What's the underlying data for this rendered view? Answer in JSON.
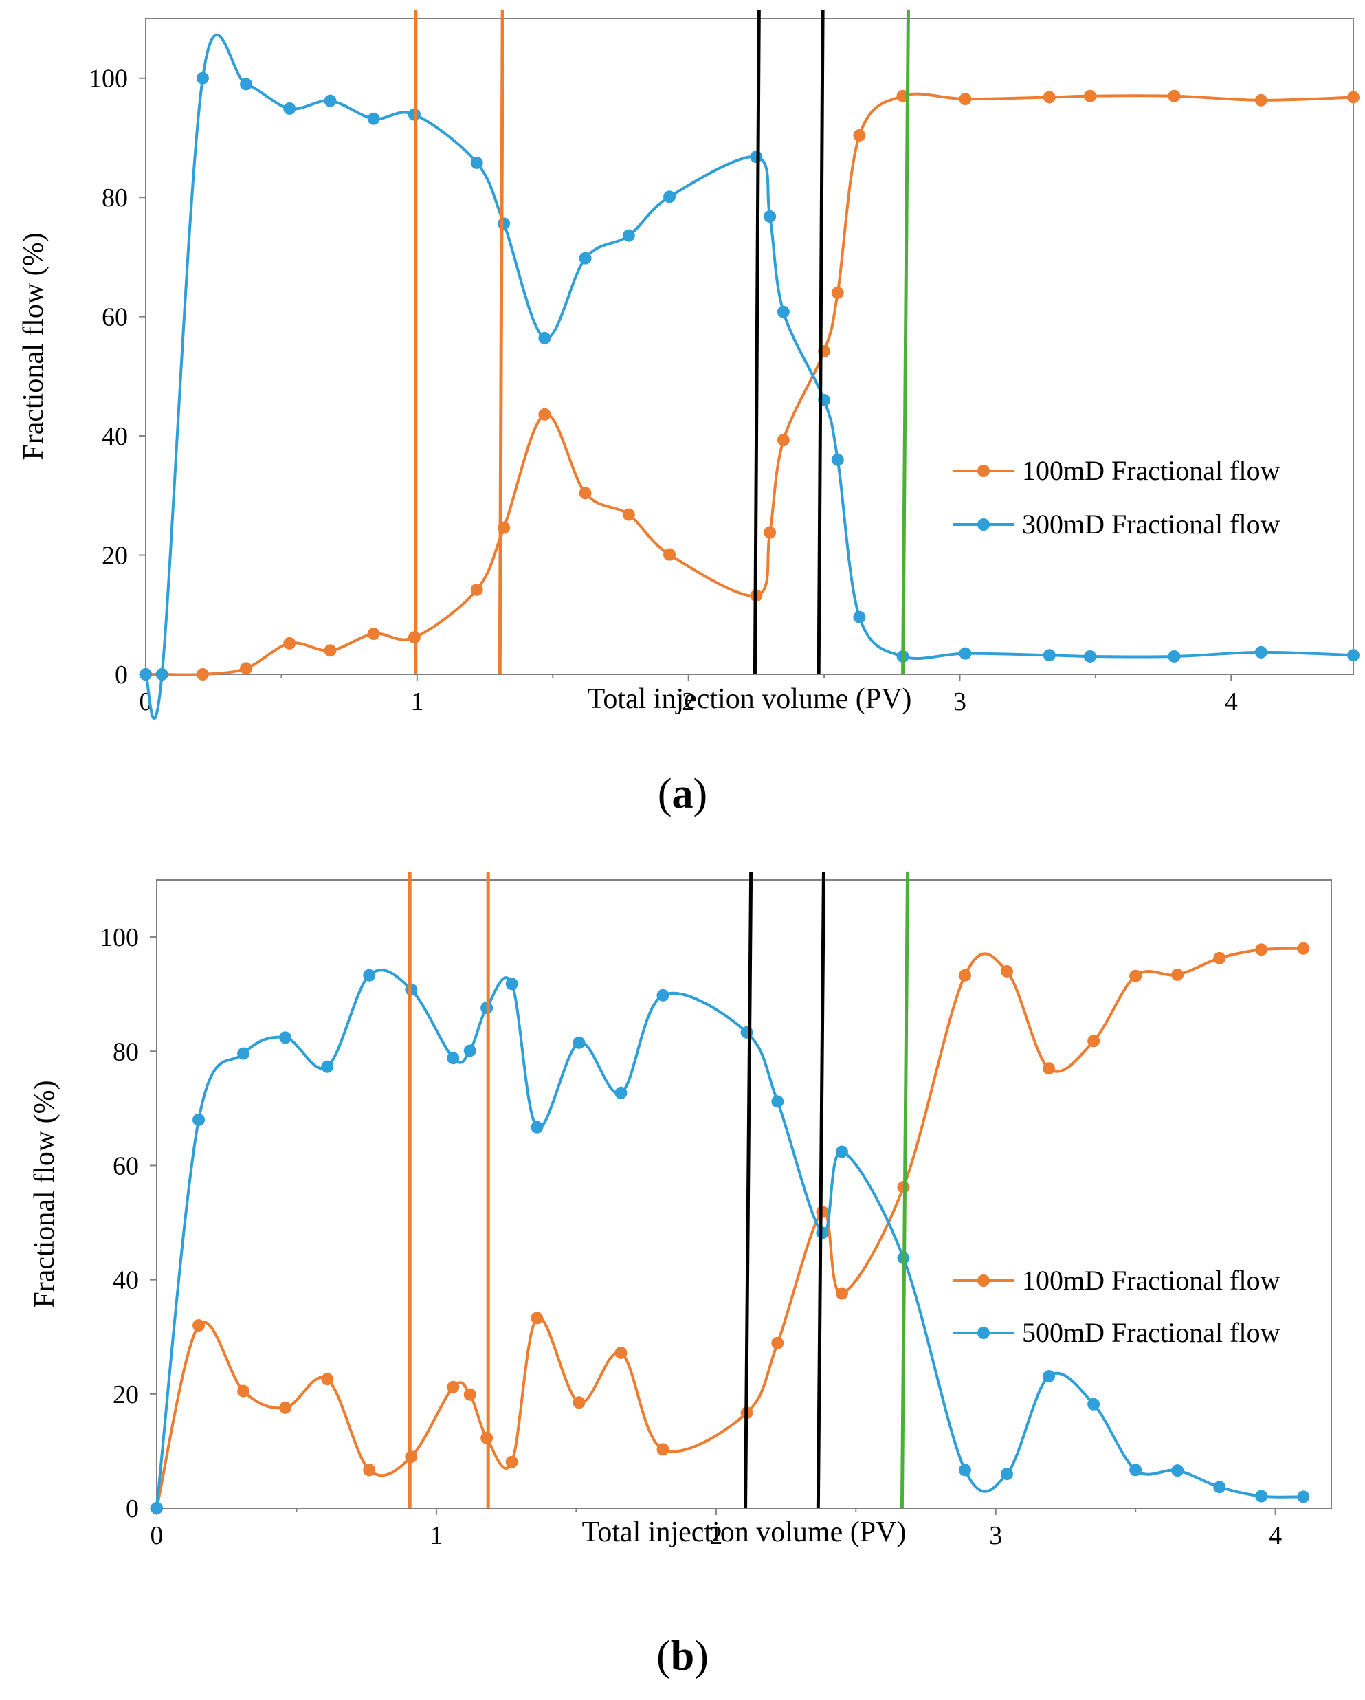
{
  "colors": {
    "orange": "#ED7D31",
    "blue": "#2E9FD9",
    "black": "#000000",
    "green": "#4CAF39",
    "axis": "#808080"
  },
  "chart_data": [
    {
      "id": "a",
      "type": "line",
      "panel_label": "a",
      "xlabel": "Total injection volume (PV)",
      "ylabel": "Fractional flow (%)",
      "xlim": [
        0,
        4.45
      ],
      "ylim": [
        0,
        110
      ],
      "xticks": [
        0,
        1,
        2,
        3,
        4
      ],
      "yticks": [
        0,
        20,
        40,
        60,
        80,
        100
      ],
      "grid": false,
      "legend_position": "right-middle",
      "series": [
        {
          "name": "100mD Fractional flow",
          "color": "orange",
          "points": [
            [
              0,
              0
            ],
            [
              0.06,
              0
            ],
            [
              0.21,
              0
            ],
            [
              0.37,
              1
            ],
            [
              0.53,
              5.2
            ],
            [
              0.68,
              4
            ],
            [
              0.84,
              6.8
            ],
            [
              0.99,
              6.2
            ],
            [
              1.22,
              14.2
            ],
            [
              1.32,
              24.6
            ],
            [
              1.47,
              43.6
            ],
            [
              1.62,
              30.4
            ],
            [
              1.78,
              26.8
            ],
            [
              1.93,
              20.1
            ],
            [
              2.25,
              13.2
            ],
            [
              2.3,
              23.8
            ],
            [
              2.35,
              39.3
            ],
            [
              2.5,
              54.2
            ],
            [
              2.55,
              64
            ],
            [
              2.63,
              90.4
            ],
            [
              2.79,
              97
            ],
            [
              3.02,
              96.5
            ],
            [
              3.33,
              96.8
            ],
            [
              3.48,
              97
            ],
            [
              3.79,
              97
            ],
            [
              4.11,
              96.3
            ],
            [
              4.45,
              96.8
            ]
          ]
        },
        {
          "name": "300mD Fractional flow",
          "color": "blue",
          "points": [
            [
              0,
              0
            ],
            [
              0.06,
              0
            ],
            [
              0.21,
              100
            ],
            [
              0.37,
              99
            ],
            [
              0.53,
              94.9
            ],
            [
              0.68,
              96.2
            ],
            [
              0.84,
              93.2
            ],
            [
              0.99,
              93.9
            ],
            [
              1.22,
              85.8
            ],
            [
              1.32,
              75.6
            ],
            [
              1.47,
              56.4
            ],
            [
              1.62,
              69.8
            ],
            [
              1.78,
              73.6
            ],
            [
              1.93,
              80.1
            ],
            [
              2.25,
              86.8
            ],
            [
              2.3,
              76.8
            ],
            [
              2.35,
              60.8
            ],
            [
              2.5,
              46
            ],
            [
              2.55,
              36
            ],
            [
              2.63,
              9.6
            ],
            [
              2.79,
              3
            ],
            [
              3.02,
              3.5
            ],
            [
              3.33,
              3.2
            ],
            [
              3.48,
              3
            ],
            [
              3.79,
              3
            ],
            [
              4.11,
              3.7
            ],
            [
              4.45,
              3.2
            ]
          ]
        }
      ],
      "vlines": [
        {
          "color": "orange",
          "x1": 0.995,
          "x2": 0.995
        },
        {
          "color": "orange",
          "x1": 1.305,
          "x2": 1.315
        },
        {
          "color": "black",
          "x1": 2.245,
          "x2": 2.26
        },
        {
          "color": "black",
          "x1": 2.48,
          "x2": 2.495
        },
        {
          "color": "green",
          "x1": 2.79,
          "x2": 2.81
        }
      ]
    },
    {
      "id": "b",
      "type": "line",
      "panel_label": "b",
      "xlabel": "Total injection volume (PV)",
      "ylabel": "Fractional flow (%)",
      "xlim": [
        0,
        4.2
      ],
      "ylim": [
        0,
        110
      ],
      "xticks": [
        0,
        1,
        2,
        3,
        4
      ],
      "yticks": [
        0,
        20,
        40,
        60,
        80,
        100
      ],
      "grid": false,
      "legend_position": "right-middle",
      "series": [
        {
          "name": "100mD Fractional flow",
          "color": "orange",
          "points": [
            [
              0,
              0
            ],
            [
              0.15,
              32
            ],
            [
              0.31,
              20.5
            ],
            [
              0.46,
              17.6
            ],
            [
              0.61,
              22.6
            ],
            [
              0.76,
              6.7
            ],
            [
              0.91,
              9
            ],
            [
              1.06,
              21.2
            ],
            [
              1.12,
              19.9
            ],
            [
              1.18,
              12.3
            ],
            [
              1.27,
              8.1
            ],
            [
              1.36,
              33.3
            ],
            [
              1.51,
              18.5
            ],
            [
              1.66,
              27.2
            ],
            [
              1.81,
              10.3
            ],
            [
              2.11,
              16.7
            ],
            [
              2.22,
              28.9
            ],
            [
              2.38,
              51.9
            ],
            [
              2.45,
              37.6
            ],
            [
              2.67,
              56.2
            ],
            [
              2.89,
              93.3
            ],
            [
              3.04,
              94
            ],
            [
              3.19,
              77
            ],
            [
              3.35,
              81.8
            ],
            [
              3.5,
              93.2
            ],
            [
              3.65,
              93.4
            ],
            [
              3.8,
              96.3
            ],
            [
              3.95,
              97.8
            ],
            [
              4.1,
              98
            ]
          ]
        },
        {
          "name": "500mD Fractional flow",
          "color": "blue",
          "points": [
            [
              0,
              0
            ],
            [
              0.15,
              68
            ],
            [
              0.31,
              79.6
            ],
            [
              0.46,
              82.4
            ],
            [
              0.61,
              77.3
            ],
            [
              0.76,
              93.3
            ],
            [
              0.91,
              90.8
            ],
            [
              1.06,
              78.8
            ],
            [
              1.12,
              80.1
            ],
            [
              1.18,
              87.6
            ],
            [
              1.27,
              91.8
            ],
            [
              1.36,
              66.7
            ],
            [
              1.51,
              81.5
            ],
            [
              1.66,
              72.7
            ],
            [
              1.81,
              89.8
            ],
            [
              2.11,
              83.3
            ],
            [
              2.22,
              71.2
            ],
            [
              2.38,
              48.2
            ],
            [
              2.45,
              62.4
            ],
            [
              2.67,
              43.8
            ],
            [
              2.89,
              6.7
            ],
            [
              3.04,
              6
            ],
            [
              3.19,
              23.1
            ],
            [
              3.35,
              18.2
            ],
            [
              3.5,
              6.7
            ],
            [
              3.65,
              6.6
            ],
            [
              3.8,
              3.7
            ],
            [
              3.95,
              2.1
            ],
            [
              4.1,
              2
            ]
          ]
        }
      ],
      "vlines": [
        {
          "color": "orange",
          "x1": 0.905,
          "x2": 0.905
        },
        {
          "color": "orange",
          "x1": 1.185,
          "x2": 1.185
        },
        {
          "color": "black",
          "x1": 2.105,
          "x2": 2.125
        },
        {
          "color": "black",
          "x1": 2.365,
          "x2": 2.385
        },
        {
          "color": "green",
          "x1": 2.665,
          "x2": 2.685
        }
      ]
    }
  ]
}
